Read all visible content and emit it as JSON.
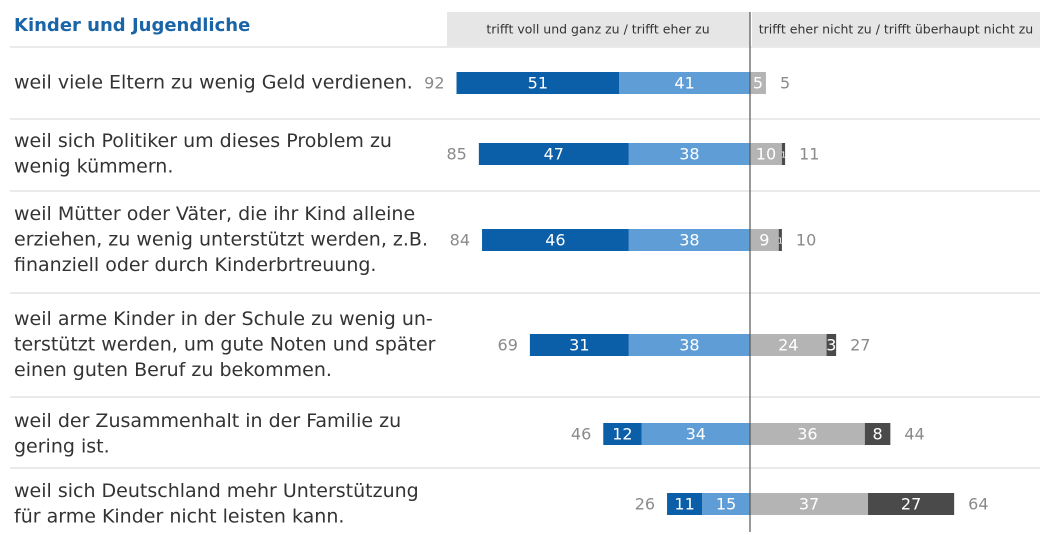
{
  "chart_data": {
    "type": "bar",
    "orientation": "horizontal",
    "diverging": true,
    "title": "Kinder und Jugendliche",
    "left_header": "trifft voll und ganz zu / trifft eher zu",
    "right_header": "trifft eher nicht zu / trifft überhaupt nicht zu",
    "categories": [
      [
        "weil viele Eltern zu wenig Geld verdienen."
      ],
      [
        "weil sich Politiker um dieses Problem zu",
        "wenig kümmern."
      ],
      [
        "weil Mütter oder Väter, die ihr Kind alleine",
        "erziehen, zu wenig unterstützt werden, z.B.",
        "finanziell oder durch Kinderbrtreuung."
      ],
      [
        "weil arme Kinder in der Schule zu wenig un-",
        "terstützt werden, um gute Noten und später",
        "einen guten Beruf zu bekommen."
      ],
      [
        "weil der Zusammenhalt in der Familie zu",
        "gering ist."
      ],
      [
        "weil sich Deutschland mehr Unterstützung",
        "für arme Kinder nicht leisten kann."
      ]
    ],
    "series": [
      {
        "color": "#0b5ea8",
        "side": "left",
        "values": [
          51,
          47,
          46,
          31,
          12,
          11
        ]
      },
      {
        "color": "#5f9dd6",
        "side": "left",
        "values": [
          41,
          38,
          38,
          38,
          34,
          15
        ]
      },
      {
        "color": "#b4b4b4",
        "side": "right",
        "values": [
          5,
          10,
          9,
          24,
          36,
          37
        ]
      },
      {
        "color": "#4a4a4a",
        "side": "right",
        "values": [
          null,
          1,
          1,
          3,
          8,
          27
        ]
      }
    ],
    "left_totals": [
      92,
      85,
      84,
      69,
      46,
      26
    ],
    "right_totals": [
      5,
      11,
      10,
      27,
      44,
      64
    ]
  }
}
